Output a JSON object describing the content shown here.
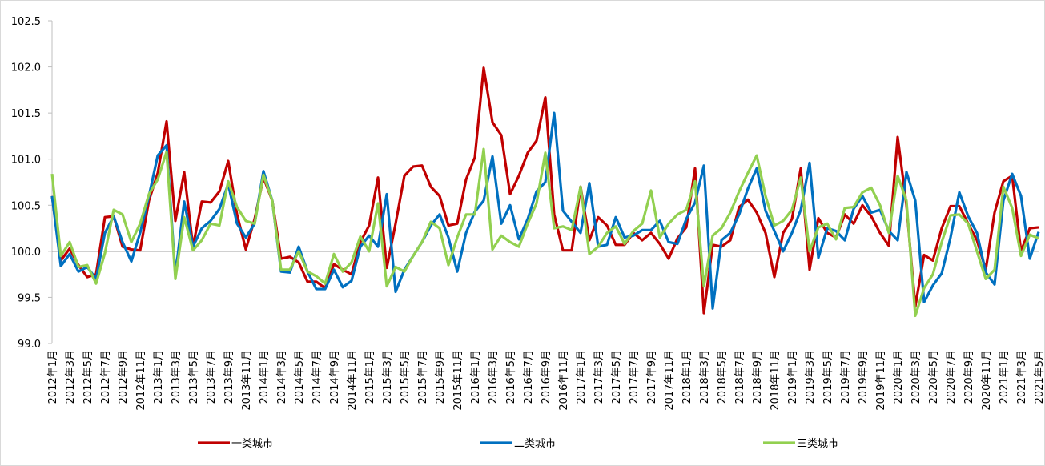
{
  "chart_data": {
    "type": "line",
    "categories": [
      "2012年1月",
      null,
      "2012年3月",
      null,
      "2012年5月",
      null,
      "2012年7月",
      null,
      "2012年9月",
      null,
      "2012年11月",
      null,
      "2013年1月",
      null,
      "2013年3月",
      null,
      "2013年5月",
      null,
      "2013年7月",
      null,
      "2013年9月",
      null,
      "2013年11月",
      null,
      "2014年1月",
      null,
      "2014年3月",
      null,
      "2014年5月",
      null,
      "2014年7月",
      null,
      "2014年9月",
      null,
      "2014年11月",
      null,
      "2015年1月",
      null,
      "2015年3月",
      null,
      "2015年5月",
      null,
      "2015年7月",
      null,
      "2015年9月",
      null,
      "2015年11月",
      null,
      "2016年1月",
      null,
      "2016年3月",
      null,
      "2016年5月",
      null,
      "2016年7月",
      null,
      "2016年9月",
      null,
      "2016年11月",
      null,
      "2017年1月",
      null,
      "2017年3月",
      null,
      "2017年5月",
      null,
      "2017年7月",
      null,
      "2017年9月",
      null,
      "2017年11月",
      null,
      "2018年1月",
      null,
      "2018年3月",
      null,
      "2018年5月",
      null,
      "2018年7月",
      null,
      "2018年9月",
      null,
      "2018年11月",
      null,
      "2019年1月",
      null,
      "2019年3月",
      null,
      "2019年5月",
      null,
      "2019年7月",
      null,
      "2019年9月",
      null,
      "2019年11月",
      null,
      "2020年1月",
      null,
      "2020年3月",
      null,
      "2020年5月",
      null,
      "2020年7月",
      null,
      "2020年9月",
      null,
      "2020年11月",
      null,
      "2021年1月",
      null,
      "2021年3月",
      null,
      "2021年5月"
    ],
    "series": [
      {
        "name": "一类城市",
        "color": "#c00000",
        "values": [
          100.6,
          99.9,
          100.03,
          99.85,
          99.72,
          99.75,
          100.37,
          100.38,
          100.05,
          100.02,
          100.01,
          100.55,
          100.85,
          101.41,
          100.33,
          100.86,
          100.05,
          100.54,
          100.53,
          100.65,
          100.98,
          100.4,
          100.02,
          100.35,
          100.8,
          100.55,
          99.92,
          99.94,
          99.88,
          99.67,
          99.67,
          99.6,
          99.86,
          99.8,
          99.75,
          100.1,
          100.28,
          100.8,
          99.82,
          100.3,
          100.82,
          100.92,
          100.93,
          100.7,
          100.6,
          100.28,
          100.3,
          100.78,
          101.02,
          101.99,
          101.4,
          101.26,
          100.62,
          100.82,
          101.07,
          101.2,
          101.67,
          100.4,
          100.01,
          100.01,
          100.7,
          100.12,
          100.37,
          100.28,
          100.07,
          100.07,
          100.2,
          100.12,
          100.2,
          100.08,
          99.92,
          100.14,
          100.26,
          100.9,
          99.33,
          100.07,
          100.05,
          100.12,
          100.48,
          100.56,
          100.42,
          100.2,
          99.72,
          100.2,
          100.35,
          100.9,
          99.8,
          100.36,
          100.2,
          100.15,
          100.4,
          100.3,
          100.5,
          100.38,
          100.2,
          100.06,
          101.24,
          100.5,
          99.4,
          99.96,
          99.9,
          100.25,
          100.49,
          100.49,
          100.3,
          100.12,
          99.8,
          100.42,
          100.76,
          100.82,
          100.0,
          100.25,
          100.26
        ]
      },
      {
        "name": "二类城市",
        "color": "#0070c0",
        "values": [
          100.6,
          99.84,
          99.97,
          99.78,
          99.83,
          99.7,
          100.2,
          100.38,
          100.1,
          99.89,
          100.2,
          100.6,
          101.04,
          101.15,
          99.74,
          100.54,
          100.05,
          100.25,
          100.33,
          100.46,
          100.73,
          100.3,
          100.15,
          100.3,
          100.87,
          100.55,
          99.78,
          99.77,
          100.05,
          99.78,
          99.59,
          99.59,
          99.8,
          99.61,
          99.68,
          100.05,
          100.17,
          100.05,
          100.62,
          99.56,
          99.8,
          99.95,
          100.1,
          100.28,
          100.4,
          100.15,
          99.78,
          100.2,
          100.43,
          100.55,
          101.03,
          100.3,
          100.5,
          100.13,
          100.35,
          100.65,
          100.75,
          101.5,
          100.44,
          100.32,
          100.2,
          100.74,
          100.05,
          100.07,
          100.37,
          100.15,
          100.17,
          100.23,
          100.23,
          100.33,
          100.1,
          100.08,
          100.35,
          100.53,
          100.93,
          99.38,
          100.12,
          100.2,
          100.4,
          100.68,
          100.9,
          100.44,
          100.22,
          100.0,
          100.2,
          100.45,
          100.96,
          99.93,
          100.25,
          100.22,
          100.12,
          100.46,
          100.6,
          100.42,
          100.45,
          100.22,
          100.12,
          100.86,
          100.55,
          99.45,
          99.63,
          99.76,
          100.15,
          100.64,
          100.38,
          100.2,
          99.77,
          99.64,
          100.55,
          100.84,
          100.6,
          99.92,
          100.21
        ]
      },
      {
        "name": "三类城市",
        "color": "#92d050",
        "values": [
          100.84,
          99.95,
          100.1,
          99.83,
          99.85,
          99.65,
          99.98,
          100.45,
          100.4,
          100.1,
          100.3,
          100.62,
          100.78,
          101.08,
          99.7,
          100.37,
          100.01,
          100.12,
          100.3,
          100.28,
          100.76,
          100.48,
          100.33,
          100.3,
          100.83,
          100.55,
          99.8,
          99.8,
          100.0,
          99.78,
          99.73,
          99.65,
          99.97,
          99.78,
          99.88,
          100.16,
          100.0,
          100.52,
          99.62,
          99.83,
          99.78,
          99.95,
          100.1,
          100.32,
          100.25,
          99.85,
          100.15,
          100.4,
          100.4,
          101.11,
          100.02,
          100.17,
          100.1,
          100.05,
          100.3,
          100.52,
          101.07,
          100.25,
          100.27,
          100.23,
          100.7,
          99.97,
          100.05,
          100.2,
          100.27,
          100.08,
          100.22,
          100.3,
          100.66,
          100.15,
          100.3,
          100.4,
          100.45,
          100.76,
          99.62,
          100.17,
          100.25,
          100.42,
          100.65,
          100.85,
          101.04,
          100.6,
          100.28,
          100.33,
          100.45,
          100.8,
          100.0,
          100.26,
          100.3,
          100.13,
          100.47,
          100.48,
          100.64,
          100.69,
          100.5,
          100.2,
          100.82,
          100.55,
          99.3,
          99.6,
          99.75,
          100.1,
          100.39,
          100.4,
          100.3,
          100.0,
          99.7,
          99.8,
          100.7,
          100.47,
          99.95,
          100.18,
          100.14
        ]
      }
    ],
    "ylim": [
      99.0,
      102.5
    ],
    "yticks": [
      {
        "value": 99.0,
        "label": "99.0"
      },
      {
        "value": 99.5,
        "label": "99.5"
      },
      {
        "value": 100.0,
        "label": "100.0"
      },
      {
        "value": 100.5,
        "label": "100.5"
      },
      {
        "value": 101.0,
        "label": "101.0"
      },
      {
        "value": 101.5,
        "label": "101.5"
      },
      {
        "value": 102.0,
        "label": "102.0"
      },
      {
        "value": 102.5,
        "label": "102.5"
      }
    ],
    "x_axis_crosses": 100.0,
    "legend": "bottom"
  }
}
